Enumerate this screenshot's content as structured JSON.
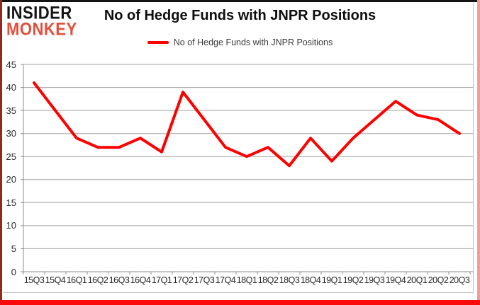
{
  "logo": {
    "line1": "INSIDER",
    "line2": "MONKEY",
    "insider_color": "#141414",
    "monkey_color": "#e2503c"
  },
  "header": {
    "title": "No of Hedge Funds with JNPR Positions"
  },
  "legend": {
    "label": "No of Hedge Funds with JNPR Positions",
    "swatch_color": "#ff0000"
  },
  "chart_data": {
    "type": "line",
    "title": "No of Hedge Funds with JNPR Positions",
    "categories": [
      "15Q3",
      "15Q4",
      "16Q1",
      "16Q2",
      "16Q3",
      "16Q4",
      "17Q1",
      "17Q2",
      "17Q3",
      "17Q4",
      "18Q1",
      "18Q2",
      "18Q3",
      "18Q4",
      "19Q1",
      "19Q2",
      "19Q3",
      "19Q4",
      "20Q1",
      "20Q2",
      "20Q3"
    ],
    "series": [
      {
        "name": "No of Hedge Funds with JNPR Positions",
        "color": "#ff0000",
        "values": [
          41,
          35,
          29,
          27,
          27,
          29,
          26,
          39,
          33,
          27,
          25,
          27,
          23,
          29,
          24,
          29,
          33,
          37,
          34,
          33,
          30
        ]
      }
    ],
    "ylim": [
      0,
      45
    ],
    "yticks": [
      0,
      5,
      10,
      15,
      20,
      25,
      30,
      35,
      40,
      45
    ],
    "grid": true,
    "legend_position": "top",
    "gridline_color": "#a3a3a3",
    "axis_color": "#8c8c8c"
  }
}
